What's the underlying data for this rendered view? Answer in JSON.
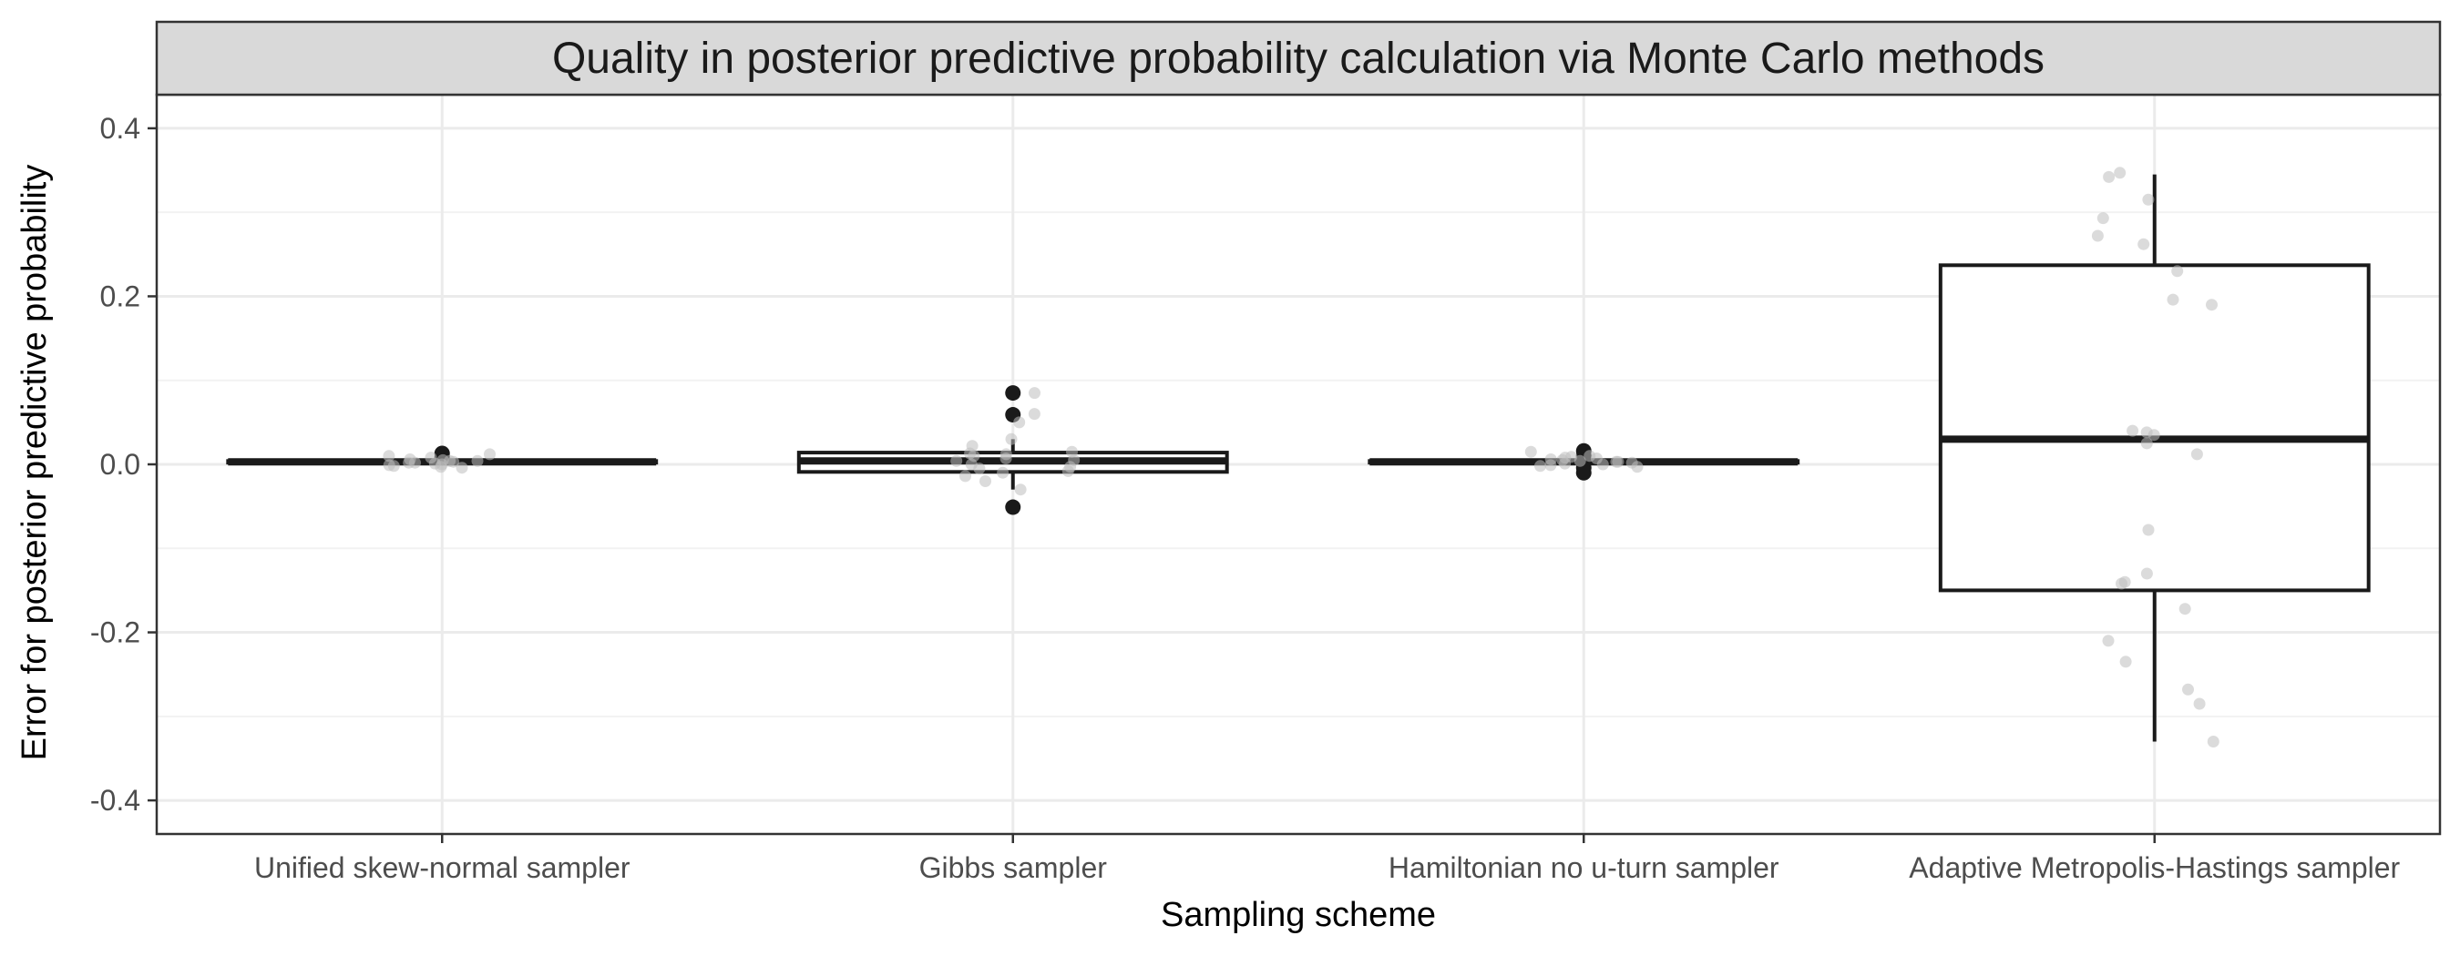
{
  "chart_data": {
    "type": "box",
    "title": "Quality in posterior predictive probability calculation via Monte Carlo methods",
    "xlabel": "Sampling scheme",
    "ylabel": "Error for posterior predictive probability",
    "ylim": [
      -0.44,
      0.44
    ],
    "yticks": [
      -0.4,
      -0.2,
      0.0,
      0.2,
      0.4
    ],
    "ytick_labels": [
      "-0.4",
      "-0.2",
      "0.0",
      "0.2",
      "0.4"
    ],
    "grid": true,
    "categories": [
      "Unified skew-normal sampler",
      "Gibbs sampler",
      "Hamiltonian no u-turn sampler",
      "Adaptive Metropolis-Hastings sampler"
    ],
    "boxes": [
      {
        "category": "Unified skew-normal sampler",
        "q1": 0.002,
        "median": 0.003,
        "q3": 0.004,
        "whisker_low": 0.001,
        "whisker_high": 0.005,
        "outliers": [
          0.013,
          0.008
        ],
        "points": [
          -0.003,
          0.004,
          -0.002,
          0.006,
          0.001,
          0.005,
          -0.001,
          0.012,
          0.003,
          0.008,
          0.002,
          0.004,
          -0.004,
          0.01,
          0.0,
          0.002
        ]
      },
      {
        "category": "Gibbs sampler",
        "q1": -0.009,
        "median": 0.004,
        "q3": 0.014,
        "whisker_low": -0.03,
        "whisker_high": 0.03,
        "outliers": [
          0.085,
          0.059,
          -0.051
        ],
        "points": [
          0.085,
          0.013,
          -0.03,
          0.03,
          0.022,
          0.004,
          -0.008,
          0.015,
          -0.014,
          0.007,
          -0.003,
          0.01,
          -0.01,
          0.05,
          0.06,
          -0.02,
          0.0,
          0.005,
          0.012,
          -0.005
        ]
      },
      {
        "category": "Hamiltonian no u-turn sampler",
        "q1": 0.002,
        "median": 0.003,
        "q3": 0.004,
        "whisker_low": 0.001,
        "whisker_high": 0.005,
        "outliers": [
          0.016,
          0.01,
          -0.004,
          -0.01,
          0.006
        ],
        "points": [
          0.01,
          0.005,
          -0.002,
          0.003,
          0.008,
          0.001,
          0.015,
          -0.003,
          0.006,
          0.002,
          0.004,
          -0.001,
          0.007,
          0.009,
          0.003,
          0.0
        ]
      },
      {
        "category": "Adaptive Metropolis-Hastings sampler",
        "q1": -0.15,
        "median": 0.03,
        "q3": 0.237,
        "whisker_low": -0.33,
        "whisker_high": 0.345,
        "outliers": [],
        "points": [
          0.342,
          0.347,
          0.315,
          0.293,
          0.272,
          0.262,
          0.23,
          0.196,
          0.19,
          0.04,
          0.038,
          0.035,
          0.025,
          0.012,
          -0.078,
          -0.13,
          -0.14,
          -0.142,
          -0.172,
          -0.21,
          -0.235,
          -0.268,
          -0.285,
          -0.33
        ]
      }
    ],
    "colors": {
      "panel_background": "#ffffff",
      "panel_border": "#333333",
      "grid_major": "#ebebeb",
      "grid_minor": "#f2f2f2",
      "strip_background": "#d9d9d9",
      "box_line": "#1a1a1a",
      "outlier": "#1a1a1a",
      "jitter_point": "#bdbdbd"
    }
  }
}
